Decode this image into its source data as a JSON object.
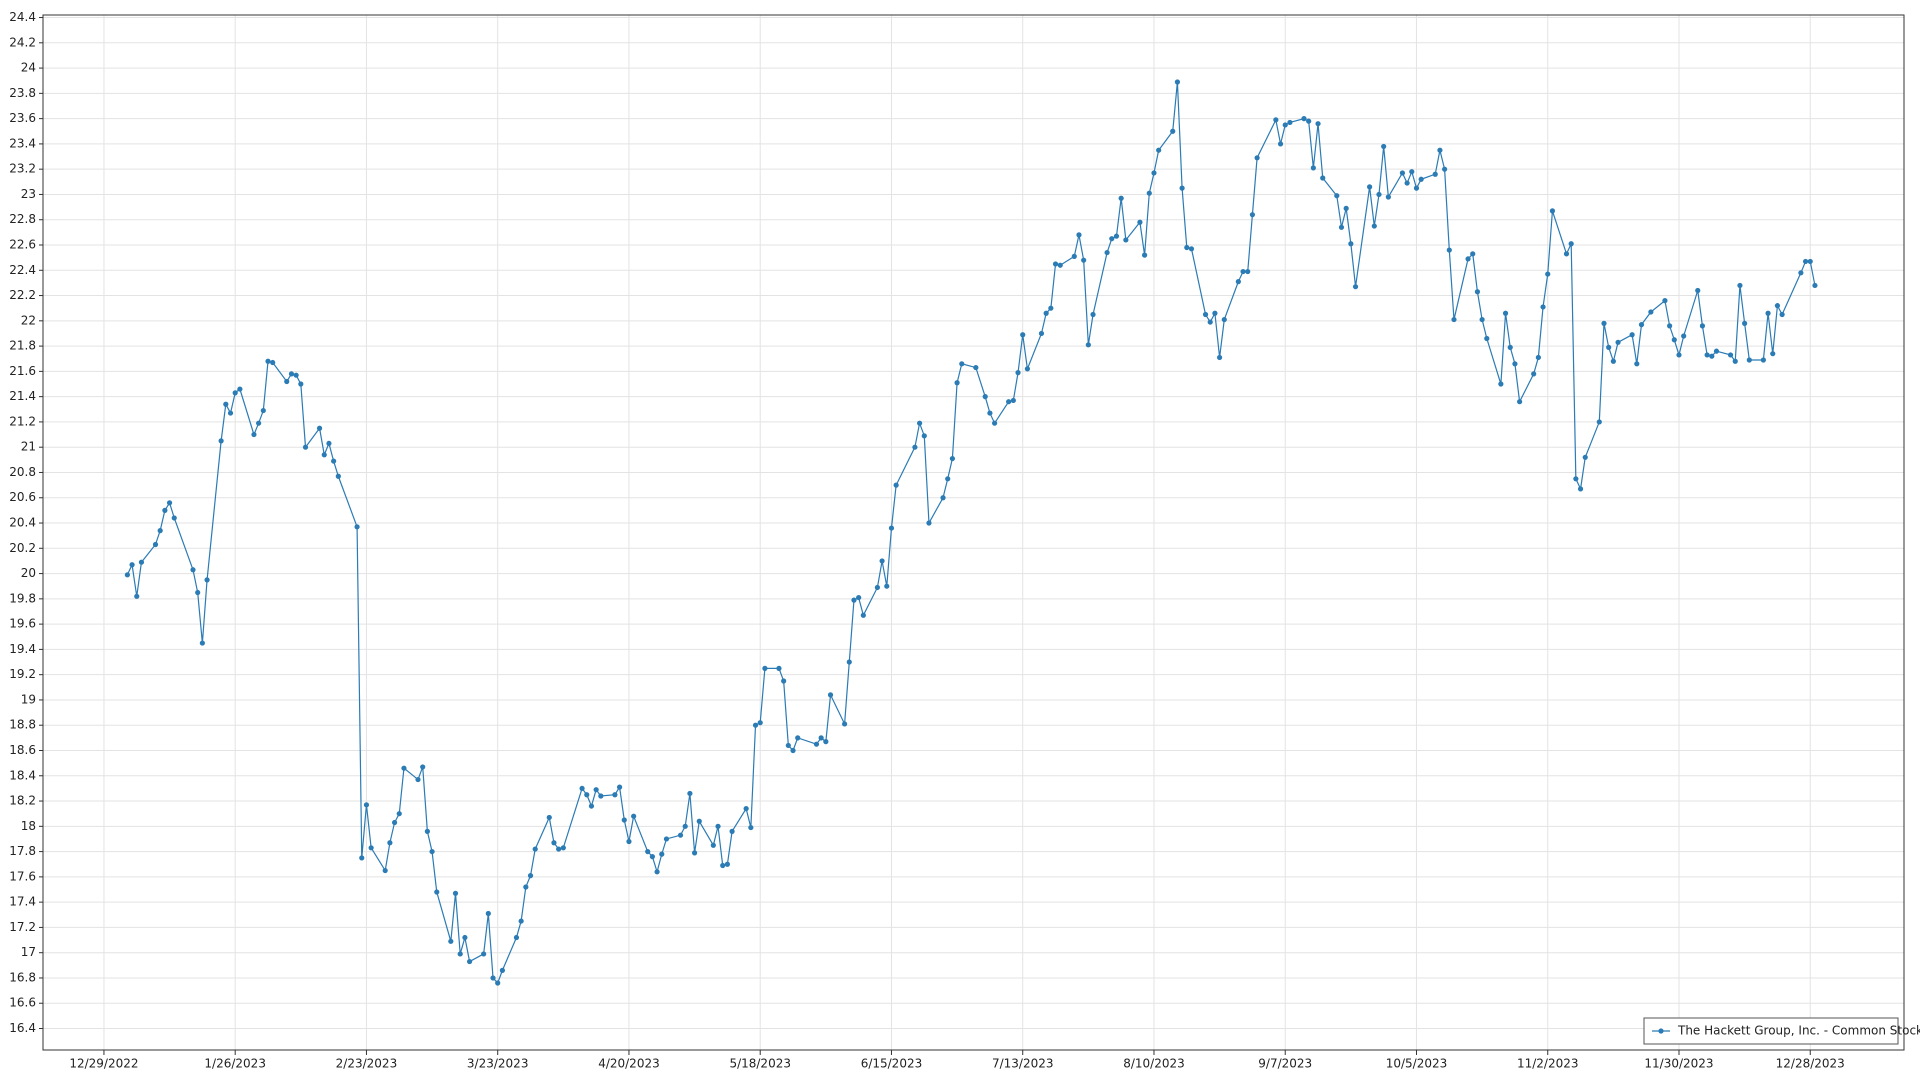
{
  "chart_data": {
    "type": "line",
    "x": [
      "1/3/2023",
      "1/4/2023",
      "1/5/2023",
      "1/6/2023",
      "1/9/2023",
      "1/10/2023",
      "1/11/2023",
      "1/12/2023",
      "1/13/2023",
      "1/17/2023",
      "1/18/2023",
      "1/19/2023",
      "1/20/2023",
      "1/23/2023",
      "1/24/2023",
      "1/25/2023",
      "1/26/2023",
      "1/27/2023",
      "1/30/2023",
      "1/31/2023",
      "2/1/2023",
      "2/2/2023",
      "2/3/2023",
      "2/6/2023",
      "2/7/2023",
      "2/8/2023",
      "2/9/2023",
      "2/10/2023",
      "2/13/2023",
      "2/14/2023",
      "2/15/2023",
      "2/16/2023",
      "2/17/2023",
      "2/21/2023",
      "2/22/2023",
      "2/23/2023",
      "2/24/2023",
      "2/27/2023",
      "2/28/2023",
      "3/1/2023",
      "3/2/2023",
      "3/3/2023",
      "3/6/2023",
      "3/7/2023",
      "3/8/2023",
      "3/9/2023",
      "3/10/2023",
      "3/13/2023",
      "3/14/2023",
      "3/15/2023",
      "3/16/2023",
      "3/17/2023",
      "3/20/2023",
      "3/21/2023",
      "3/22/2023",
      "3/23/2023",
      "3/24/2023",
      "3/27/2023",
      "3/28/2023",
      "3/29/2023",
      "3/30/2023",
      "3/31/2023",
      "4/3/2023",
      "4/4/2023",
      "4/5/2023",
      "4/6/2023",
      "4/10/2023",
      "4/11/2023",
      "4/12/2023",
      "4/13/2023",
      "4/14/2023",
      "4/17/2023",
      "4/18/2023",
      "4/19/2023",
      "4/20/2023",
      "4/21/2023",
      "4/24/2023",
      "4/25/2023",
      "4/26/2023",
      "4/27/2023",
      "4/28/2023",
      "5/1/2023",
      "5/2/2023",
      "5/3/2023",
      "5/4/2023",
      "5/5/2023",
      "5/8/2023",
      "5/9/2023",
      "5/10/2023",
      "5/11/2023",
      "5/12/2023",
      "5/15/2023",
      "5/16/2023",
      "5/17/2023",
      "5/18/2023",
      "5/19/2023",
      "5/22/2023",
      "5/23/2023",
      "5/24/2023",
      "5/25/2023",
      "5/26/2023",
      "5/30/2023",
      "5/31/2023",
      "6/1/2023",
      "6/2/2023",
      "6/5/2023",
      "6/6/2023",
      "6/7/2023",
      "6/8/2023",
      "6/9/2023",
      "6/12/2023",
      "6/13/2023",
      "6/14/2023",
      "6/15/2023",
      "6/16/2023",
      "6/20/2023",
      "6/21/2023",
      "6/22/2023",
      "6/23/2023",
      "6/26/2023",
      "6/27/2023",
      "6/28/2023",
      "6/29/2023",
      "6/30/2023",
      "7/3/2023",
      "7/5/2023",
      "7/6/2023",
      "7/7/2023",
      "7/10/2023",
      "7/11/2023",
      "7/12/2023",
      "7/13/2023",
      "7/14/2023",
      "7/17/2023",
      "7/18/2023",
      "7/19/2023",
      "7/20/2023",
      "7/21/2023",
      "7/24/2023",
      "7/25/2023",
      "7/26/2023",
      "7/27/2023",
      "7/28/2023",
      "7/31/2023",
      "8/1/2023",
      "8/2/2023",
      "8/3/2023",
      "8/4/2023",
      "8/7/2023",
      "8/8/2023",
      "8/9/2023",
      "8/10/2023",
      "8/11/2023",
      "8/14/2023",
      "8/15/2023",
      "8/16/2023",
      "8/17/2023",
      "8/18/2023",
      "8/21/2023",
      "8/22/2023",
      "8/23/2023",
      "8/24/2023",
      "8/25/2023",
      "8/28/2023",
      "8/29/2023",
      "8/30/2023",
      "8/31/2023",
      "9/1/2023",
      "9/5/2023",
      "9/6/2023",
      "9/7/2023",
      "9/8/2023",
      "9/11/2023",
      "9/12/2023",
      "9/13/2023",
      "9/14/2023",
      "9/15/2023",
      "9/18/2023",
      "9/19/2023",
      "9/20/2023",
      "9/21/2023",
      "9/22/2023",
      "9/25/2023",
      "9/26/2023",
      "9/27/2023",
      "9/28/2023",
      "9/29/2023",
      "10/2/2023",
      "10/3/2023",
      "10/4/2023",
      "10/5/2023",
      "10/6/2023",
      "10/9/2023",
      "10/10/2023",
      "10/11/2023",
      "10/12/2023",
      "10/13/2023",
      "10/16/2023",
      "10/17/2023",
      "10/18/2023",
      "10/19/2023",
      "10/20/2023",
      "10/23/2023",
      "10/24/2023",
      "10/25/2023",
      "10/26/2023",
      "10/27/2023",
      "10/30/2023",
      "10/31/2023",
      "11/1/2023",
      "11/2/2023",
      "11/3/2023",
      "11/6/2023",
      "11/7/2023",
      "11/8/2023",
      "11/9/2023",
      "11/10/2023",
      "11/13/2023",
      "11/14/2023",
      "11/15/2023",
      "11/16/2023",
      "11/17/2023",
      "11/20/2023",
      "11/21/2023",
      "11/22/2023",
      "11/24/2023",
      "11/27/2023",
      "11/28/2023",
      "11/29/2023",
      "11/30/2023",
      "12/1/2023",
      "12/4/2023",
      "12/5/2023",
      "12/6/2023",
      "12/7/2023",
      "12/8/2023",
      "12/11/2023",
      "12/12/2023",
      "12/13/2023",
      "12/14/2023",
      "12/15/2023",
      "12/18/2023",
      "12/19/2023",
      "12/20/2023",
      "12/21/2023",
      "12/22/2023",
      "12/26/2023",
      "12/27/2023",
      "12/28/2023",
      "12/29/2023"
    ],
    "series": [
      {
        "name": "The Hackett Group, Inc. - Common Stock",
        "color": "#2b7bb5",
        "values": [
          19.99,
          20.07,
          19.82,
          20.09,
          20.23,
          20.34,
          20.5,
          20.56,
          20.44,
          20.03,
          19.85,
          19.45,
          19.95,
          21.05,
          21.34,
          21.27,
          21.43,
          21.46,
          21.1,
          21.19,
          21.29,
          21.68,
          21.67,
          21.52,
          21.58,
          21.57,
          21.5,
          21.0,
          21.15,
          20.94,
          21.03,
          20.89,
          20.77,
          20.37,
          17.75,
          18.17,
          17.83,
          17.65,
          17.87,
          18.03,
          18.1,
          18.46,
          18.37,
          18.47,
          17.96,
          17.8,
          17.48,
          17.09,
          17.47,
          16.99,
          17.12,
          16.93,
          16.99,
          17.31,
          16.8,
          16.76,
          16.86,
          17.12,
          17.25,
          17.52,
          17.61,
          17.82,
          18.07,
          17.87,
          17.82,
          17.83,
          18.3,
          18.25,
          18.16,
          18.29,
          18.24,
          18.25,
          18.31,
          18.05,
          17.88,
          18.08,
          17.8,
          17.76,
          17.64,
          17.78,
          17.9,
          17.93,
          18.0,
          18.26,
          17.79,
          18.04,
          17.85,
          18.0,
          17.69,
          17.7,
          17.96,
          18.14,
          17.99,
          18.8,
          18.82,
          19.25,
          19.25,
          19.15,
          18.64,
          18.6,
          18.7,
          18.65,
          18.7,
          18.67,
          19.04,
          18.81,
          19.3,
          19.79,
          19.81,
          19.67,
          19.89,
          20.1,
          19.9,
          20.36,
          20.7,
          21.0,
          21.19,
          21.09,
          20.4,
          20.6,
          20.75,
          20.91,
          21.51,
          21.66,
          21.63,
          21.4,
          21.27,
          21.19,
          21.36,
          21.37,
          21.59,
          21.89,
          21.62,
          21.9,
          22.06,
          22.1,
          22.45,
          22.44,
          22.51,
          22.68,
          22.48,
          21.81,
          22.05,
          22.54,
          22.65,
          22.67,
          22.97,
          22.64,
          22.78,
          22.52,
          23.01,
          23.17,
          23.35,
          23.5,
          23.89,
          23.05,
          22.58,
          22.57,
          22.05,
          21.99,
          22.06,
          21.71,
          22.01,
          22.31,
          22.39,
          22.39,
          22.84,
          23.29,
          23.59,
          23.4,
          23.55,
          23.57,
          23.6,
          23.58,
          23.21,
          23.56,
          23.13,
          22.99,
          22.74,
          22.89,
          22.61,
          22.27,
          23.06,
          22.75,
          23.0,
          23.38,
          22.98,
          23.17,
          23.09,
          23.18,
          23.05,
          23.12,
          23.16,
          23.35,
          23.2,
          22.56,
          22.01,
          22.49,
          22.53,
          22.23,
          22.01,
          21.86,
          21.5,
          22.06,
          21.79,
          21.66,
          21.36,
          21.58,
          21.71,
          22.11,
          22.37,
          22.87,
          22.53,
          22.61,
          20.75,
          20.67,
          20.92,
          21.2,
          21.98,
          21.79,
          21.68,
          21.83,
          21.89,
          21.66,
          21.97,
          22.07,
          22.16,
          21.96,
          21.85,
          21.73,
          21.88,
          22.24,
          21.96,
          21.73,
          21.72,
          21.76,
          21.73,
          21.68,
          22.28,
          21.98,
          21.69,
          21.69,
          22.06,
          21.74,
          22.12,
          22.05,
          22.38,
          22.47,
          22.47,
          22.28
        ]
      }
    ],
    "xlim": [
      "12/16/2022",
      "1/17/2024"
    ],
    "xticks": [
      "12/29/2022",
      "1/26/2023",
      "2/23/2023",
      "3/23/2023",
      "4/20/2023",
      "5/18/2023",
      "6/15/2023",
      "7/13/2023",
      "8/10/2023",
      "9/7/2023",
      "10/5/2023",
      "11/2/2023",
      "11/30/2023",
      "12/28/2023"
    ],
    "ylim": [
      16.23,
      24.42
    ],
    "yticks": [
      16.4,
      16.6,
      16.8,
      17,
      17.2,
      17.4,
      17.6,
      17.8,
      18,
      18.2,
      18.4,
      18.6,
      18.8,
      19,
      19.2,
      19.4,
      19.6,
      19.8,
      20,
      20.2,
      20.4,
      20.6,
      20.8,
      21,
      21.2,
      21.4,
      21.6,
      21.8,
      22,
      22.2,
      22.4,
      22.6,
      22.8,
      23,
      23.2,
      23.4,
      23.6,
      23.8,
      24,
      24.2,
      24.4
    ],
    "grid": true,
    "legend": "lower right"
  }
}
